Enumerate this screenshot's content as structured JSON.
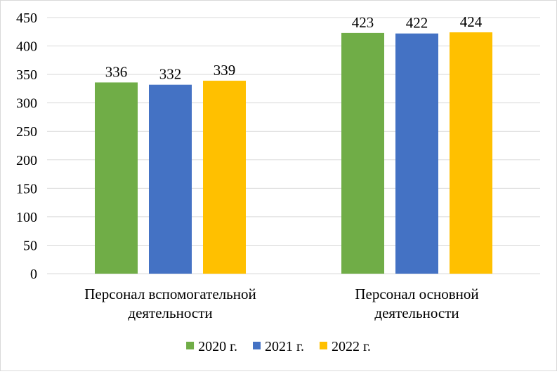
{
  "chart_data": {
    "type": "bar",
    "categories": [
      [
        "Персонал вспомогательной",
        "деятельности"
      ],
      [
        "Персонал основной",
        "деятельности"
      ]
    ],
    "series": [
      {
        "name": "2020 г.",
        "values": [
          336,
          423
        ],
        "color": "#70ad47"
      },
      {
        "name": "2021 г.",
        "values": [
          332,
          422
        ],
        "color": "#4472c4"
      },
      {
        "name": "2022 г.",
        "values": [
          339,
          424
        ],
        "color": "#ffc000"
      }
    ],
    "ylim": [
      0,
      450
    ],
    "yticks": [
      0,
      50,
      100,
      150,
      200,
      250,
      300,
      350,
      400,
      450
    ],
    "grid": true,
    "gridColor": "#d9d9d9",
    "legend": "bottom",
    "dataLabels": true,
    "title": "",
    "xlabel": "",
    "ylabel": ""
  }
}
